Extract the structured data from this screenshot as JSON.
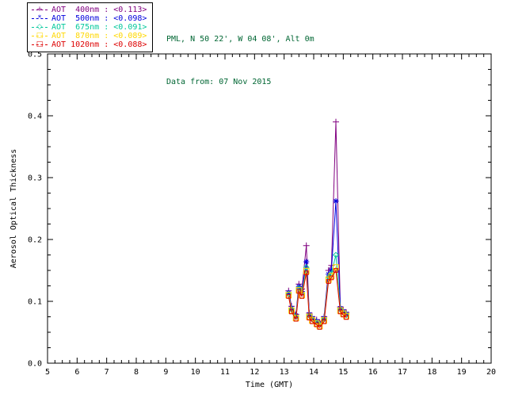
{
  "header": {
    "site": "PML, N 50 22', W 04 08', Alt 0m",
    "date": "Data from: 07 Nov 2015",
    "color": "#006633"
  },
  "legend": {
    "entries": [
      {
        "text": "AOT  400nm : <0.113>",
        "color": "#800080",
        "marker": "plus"
      },
      {
        "text": "AOT  500nm : <0.098>",
        "color": "#0000DD",
        "marker": "asterisk"
      },
      {
        "text": "AOT  675nm : <0.091>",
        "color": "#00C89B",
        "marker": "diamond"
      },
      {
        "text": "AOT  870nm : <0.089>",
        "color": "#FFD700",
        "marker": "square"
      },
      {
        "text": "AOT 1020nm : <0.088>",
        "color": "#DD0000",
        "marker": "square"
      }
    ],
    "marker_glyphs": {
      "plus": "+",
      "asterisk": "*",
      "diamond": "◇",
      "square": "□"
    }
  },
  "chart_data": {
    "type": "line",
    "title": "",
    "xlabel": "Time (GMT)",
    "ylabel": "Aerosol Optical Thickness",
    "xlim": [
      5,
      20
    ],
    "ylim": [
      0,
      0.5
    ],
    "grid": false,
    "legend_position": "top-left box",
    "xticks": [
      5,
      6,
      7,
      8,
      9,
      10,
      11,
      12,
      13,
      14,
      15,
      16,
      17,
      18,
      19,
      20
    ],
    "xtick_labels": [
      "5",
      "6",
      "7",
      "8",
      "9",
      "10",
      "11",
      "12",
      "13",
      "14",
      "15",
      "16",
      "17",
      "18",
      "19",
      "20"
    ],
    "yticks": [
      0,
      0.1,
      0.2,
      0.3,
      0.4,
      0.5
    ],
    "ytick_labels": [
      "0.0",
      "0.1",
      "0.2",
      "0.3",
      "0.4",
      "0.5"
    ],
    "x": [
      13.15,
      13.25,
      13.4,
      13.5,
      13.6,
      13.75,
      13.85,
      13.95,
      14.1,
      14.2,
      14.35,
      14.5,
      14.6,
      14.75,
      14.9,
      15.0,
      15.1
    ],
    "series": [
      {
        "name": "AOT 400nm",
        "mean_label": "<0.113>",
        "color": "#800080",
        "marker": "plus",
        "msize": 4,
        "values": [
          0.117,
          0.092,
          0.079,
          0.128,
          0.12,
          0.19,
          0.081,
          0.075,
          0.07,
          0.066,
          0.075,
          0.15,
          0.158,
          0.39,
          0.091,
          0.086,
          0.082
        ]
      },
      {
        "name": "AOT 500nm",
        "mean_label": "<0.098>",
        "color": "#0000DD",
        "marker": "asterisk",
        "msize": 3.6,
        "values": [
          0.114,
          0.089,
          0.077,
          0.124,
          0.116,
          0.164,
          0.079,
          0.073,
          0.068,
          0.064,
          0.073,
          0.144,
          0.151,
          0.262,
          0.089,
          0.084,
          0.08
        ]
      },
      {
        "name": "AOT 675nm",
        "mean_label": "<0.091>",
        "color": "#00C89B",
        "marker": "diamond",
        "msize": 3.2,
        "values": [
          0.112,
          0.087,
          0.075,
          0.121,
          0.113,
          0.155,
          0.077,
          0.071,
          0.066,
          0.062,
          0.071,
          0.139,
          0.145,
          0.175,
          0.087,
          0.082,
          0.078
        ]
      },
      {
        "name": "AOT 870nm",
        "mean_label": "<0.089>",
        "color": "#FFD700",
        "marker": "square",
        "msize": 3.4,
        "values": [
          0.11,
          0.085,
          0.073,
          0.118,
          0.11,
          0.149,
          0.075,
          0.069,
          0.064,
          0.06,
          0.069,
          0.135,
          0.141,
          0.155,
          0.085,
          0.08,
          0.076
        ]
      },
      {
        "name": "AOT 1020nm",
        "mean_label": "<0.088>",
        "color": "#DD0000",
        "marker": "square",
        "msize": 2.4,
        "values": [
          0.108,
          0.083,
          0.071,
          0.116,
          0.108,
          0.146,
          0.073,
          0.067,
          0.062,
          0.058,
          0.067,
          0.132,
          0.138,
          0.15,
          0.083,
          0.078,
          0.074
        ]
      }
    ]
  }
}
